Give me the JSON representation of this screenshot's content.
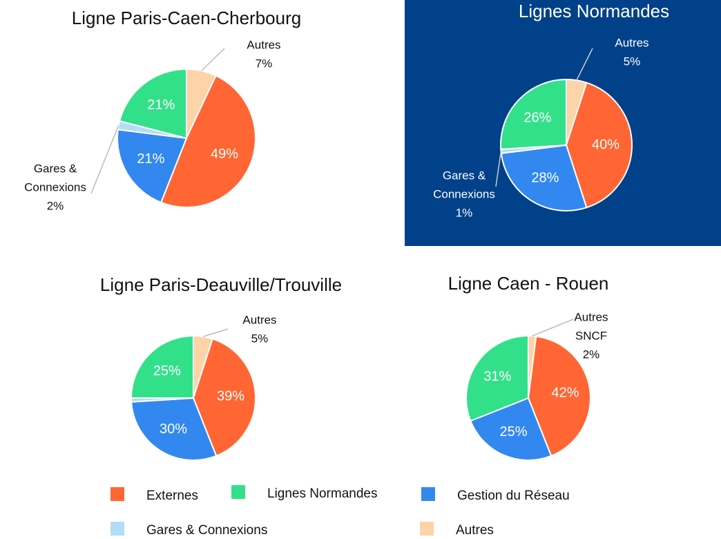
{
  "chart_data": [
    {
      "type": "pie",
      "title": "Ligne Paris-Caen-Cherbourg",
      "values": [
        7,
        49,
        21,
        2,
        21
      ],
      "value_labels": [
        "7%",
        "49%",
        "21%",
        "2%",
        "21%"
      ],
      "colors": [
        "#fdd3a8",
        "#ff6633",
        "#3388f0",
        "#b3dcf7",
        "#33e08a"
      ],
      "slice_names": [
        [
          "Autres"
        ],
        null,
        null,
        [
          "Gares &",
          "Connexions"
        ],
        null
      ]
    },
    {
      "type": "pie",
      "title": "Lignes Normandes",
      "values": [
        5,
        40,
        28,
        1,
        26
      ],
      "value_labels": [
        "5%",
        "40%",
        "28%",
        "1%",
        "26%"
      ],
      "colors": [
        "#fdd3a8",
        "#ff6633",
        "#3388f0",
        "#b3dcf7",
        "#33e08a"
      ],
      "slice_names": [
        [
          "Autres"
        ],
        null,
        null,
        [
          "Gares &",
          "Connexions"
        ],
        null
      ]
    },
    {
      "type": "pie",
      "title": "Ligne Paris-Deauville/Trouville",
      "values": [
        5,
        39,
        30,
        1,
        25
      ],
      "value_labels": [
        "5%",
        "39%",
        "30%",
        null,
        "25%"
      ],
      "colors": [
        "#fdd3a8",
        "#ff6633",
        "#3388f0",
        "#b3dcf7",
        "#33e08a"
      ],
      "slice_names": [
        [
          "Autres"
        ],
        null,
        null,
        null,
        null
      ]
    },
    {
      "type": "pie",
      "title": "Ligne Caen - Rouen",
      "values": [
        2,
        42,
        25,
        31
      ],
      "value_labels": [
        "2%",
        "42%",
        "25%",
        "31%"
      ],
      "colors": [
        "#fdd3a8",
        "#ff6633",
        "#3388f0",
        "#33e08a"
      ],
      "slice_names": [
        [
          "Autres",
          "SNCF"
        ],
        null,
        null,
        null
      ]
    }
  ],
  "legend": {
    "items": [
      {
        "name": "Externes",
        "color": "#ff6633"
      },
      {
        "name": "Lignes Normandes",
        "color": "#33e08a"
      },
      {
        "name": "Gestion du Réseau",
        "color": "#3388f0"
      },
      {
        "name": "Gares & Connexions",
        "color": "#b3dcf7"
      },
      {
        "name": "Autres",
        "color": "#fdd3a8"
      }
    ]
  }
}
